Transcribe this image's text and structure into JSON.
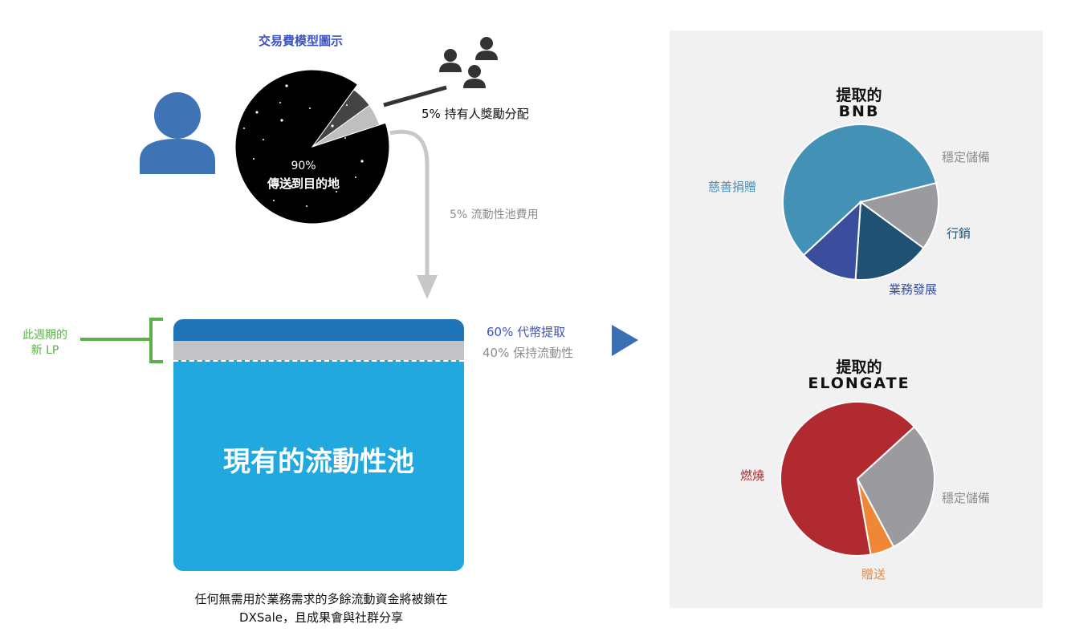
{
  "fee_model": {
    "title": "交易費模型圖示",
    "dest_percent": "90%",
    "dest_label": "傳送到目的地",
    "holder_reward": "5% 持有人獎勵分配",
    "lp_fee": "5% 流動性池費用",
    "slices": [
      {
        "label": "傳送到目的地",
        "percent": 90,
        "color": "#000000"
      },
      {
        "label": "持有人獎勵分配",
        "percent": 5,
        "color": "#444444"
      },
      {
        "label": "流動性池費用",
        "percent": 5,
        "color": "#bfbfbf"
      }
    ]
  },
  "lp": {
    "new_lp_line1": "此週期的",
    "new_lp_line2": "新 LP",
    "token_withdraw": "60% 代幣提取",
    "keep_liquidity": "40% 保持流動性",
    "pool_label": "現有的流動性池",
    "footnote_line1": "任何無需用於業務需求的多餘流動資金將被鎖在",
    "footnote_line2": "DXSale，且成果會與社群分享"
  },
  "bnb": {
    "title_line1": "提取的",
    "title_line2": "BNB",
    "slices": [
      {
        "label": "慈善捐贈",
        "percent": 58,
        "color": "#4392b5"
      },
      {
        "label": "穩定儲備",
        "percent": 14,
        "color": "#9b9b9f"
      },
      {
        "label": "行銷",
        "percent": 16,
        "color": "#1f5173"
      },
      {
        "label": "業務發展",
        "percent": 12,
        "color": "#3b4e9e"
      }
    ]
  },
  "elongate": {
    "title_line1": "提取的",
    "title_line2": "ELONGATE",
    "slices": [
      {
        "label": "燃燒",
        "percent": 66,
        "color": "#b12a30"
      },
      {
        "label": "穩定儲備",
        "percent": 29,
        "color": "#9b9b9f"
      },
      {
        "label": "贈送",
        "percent": 5,
        "color": "#f08736"
      }
    ]
  },
  "colors": {
    "title_blue": "#3b53c5",
    "lp_green": "#5bb04a",
    "pool_blue": "#21a8df",
    "pool_top": "#1f73b7",
    "arrow_blue": "#3a6fb3",
    "person_blue": "#3e74b5",
    "gray_text": "#8c8c8c"
  },
  "icons": {
    "user": "person-icon",
    "holders": "group-people-icon",
    "next": "triangle-right-icon",
    "down_arrow": "curved-arrow-down-icon"
  }
}
